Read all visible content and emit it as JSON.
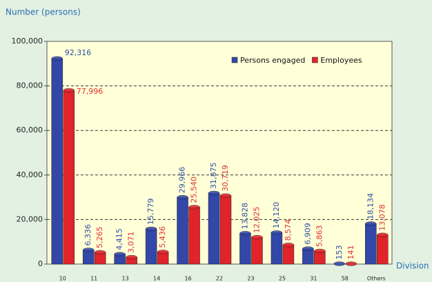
{
  "chart_data": {
    "type": "bar",
    "y_label": "Number (persons)",
    "x_label": "Division",
    "categories": [
      "10",
      "11",
      "13",
      "14",
      "16",
      "22",
      "23",
      "25",
      "31",
      "58",
      "Others"
    ],
    "series": [
      {
        "name": "Persons engaged",
        "color": "#3247a8",
        "label_color": "#2f4fa0",
        "values": [
          92316,
          6336,
          4415,
          15779,
          29966,
          31875,
          13828,
          14120,
          6909,
          153,
          18134
        ],
        "value_labels": [
          "92,316",
          "6,336",
          "4,415",
          "15,779",
          "29,966",
          "31,875",
          "13,828",
          "14,120",
          "6,909",
          "153",
          "18,134"
        ]
      },
      {
        "name": "Employees",
        "color": "#e0242a",
        "label_color": "#e03030",
        "values": [
          77996,
          5265,
          3071,
          5436,
          25540,
          30719,
          12025,
          8574,
          5863,
          141,
          13078
        ],
        "value_labels": [
          "77,996",
          "5,265",
          "3,071",
          "5,436",
          "25,540",
          "30,719",
          "12,025",
          "8,574",
          "5,863",
          "141",
          "13,078"
        ]
      }
    ],
    "ylim": [
      0,
      100000
    ],
    "yticks": [
      0,
      {
        "value": 20000,
        "label": "20,000"
      },
      {
        "value": 40000,
        "label": "40,000"
      },
      {
        "value": 60000,
        "label": "60,000"
      },
      {
        "value": 80000,
        "label": "80,000"
      },
      {
        "value": 100000,
        "label": "100,000"
      }
    ],
    "grid": true,
    "legend": "top-right"
  }
}
